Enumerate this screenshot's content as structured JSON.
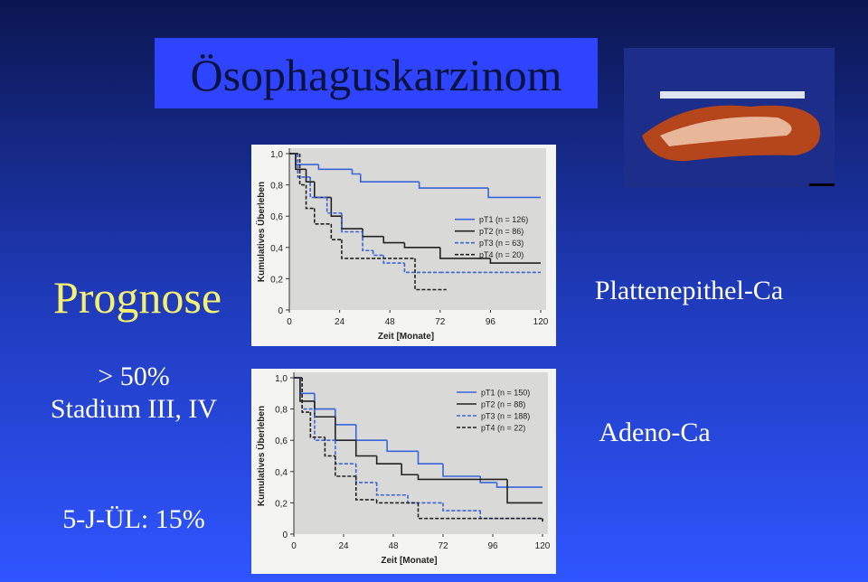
{
  "slide": {
    "title": "Ösophaguskarzinom",
    "heading": "Prognose",
    "line1": "> 50%",
    "line2": "Stadium III, IV",
    "line3": "5-J-ÜL: 15%",
    "label_top": "Plattenepithel-Ca",
    "label_bottom": "Adeno-Ca"
  },
  "chart_data": [
    {
      "type": "step",
      "xlabel": "Zeit [Monate]",
      "ylabel": "Kumulatives Überleben",
      "xlim": [
        0,
        120
      ],
      "ylim": [
        0,
        1
      ],
      "xticks": [
        0,
        24,
        48,
        72,
        96,
        120
      ],
      "yticks": [
        0,
        {
          "value": 0.2,
          "label": "0,2"
        },
        {
          "value": 0.4,
          "label": "0,4"
        },
        {
          "value": 0.6,
          "label": "0,6"
        },
        {
          "value": 0.8,
          "label": "0,8"
        },
        {
          "value": 1,
          "label": "1,0"
        }
      ],
      "legend": "center right",
      "series": [
        {
          "name": "pT1 (n = 126)",
          "color": "#3a64d8",
          "linestyle": "solid",
          "x": [
            0,
            3,
            14,
            30,
            34,
            62,
            95,
            120
          ],
          "values": [
            1.0,
            0.93,
            0.9,
            0.87,
            0.82,
            0.78,
            0.72,
            0.72
          ]
        },
        {
          "name": "pT2 (n = 86)",
          "color": "#222222",
          "linestyle": "solid",
          "x": [
            0,
            3,
            8,
            12,
            20,
            25,
            35,
            45,
            55,
            72,
            96,
            120
          ],
          "values": [
            1.0,
            0.9,
            0.82,
            0.72,
            0.6,
            0.52,
            0.47,
            0.43,
            0.4,
            0.33,
            0.3,
            0.3
          ]
        },
        {
          "name": "pT3 (n = 63)",
          "color": "#3a64d8",
          "linestyle": "dashed",
          "x": [
            0,
            4,
            10,
            18,
            25,
            35,
            40,
            45,
            55,
            72,
            120
          ],
          "values": [
            1.0,
            0.85,
            0.72,
            0.62,
            0.5,
            0.38,
            0.35,
            0.3,
            0.24,
            0.24,
            0.24
          ]
        },
        {
          "name": "pT4 (n = 20)",
          "color": "#222222",
          "linestyle": "dashed",
          "x": [
            0,
            5,
            8,
            12,
            20,
            25,
            55,
            60,
            75
          ],
          "values": [
            1.0,
            0.8,
            0.65,
            0.55,
            0.45,
            0.33,
            0.33,
            0.13,
            0.13
          ]
        }
      ]
    },
    {
      "type": "step",
      "xlabel": "Zeit [Monate]",
      "ylabel": "Kumulatives Überleben",
      "xlim": [
        0,
        120
      ],
      "ylim": [
        0,
        1
      ],
      "xticks": [
        0,
        24,
        48,
        72,
        96,
        120
      ],
      "yticks": [
        0,
        {
          "value": 0.2,
          "label": "0,2"
        },
        {
          "value": 0.4,
          "label": "0,4"
        },
        {
          "value": 0.6,
          "label": "0,6"
        },
        {
          "value": 0.8,
          "label": "0,8"
        },
        {
          "value": 1,
          "label": "1,0"
        }
      ],
      "legend": "upper right",
      "series": [
        {
          "name": "pT1 (n = 150)",
          "color": "#3a64d8",
          "linestyle": "solid",
          "x": [
            0,
            3,
            10,
            20,
            30,
            45,
            60,
            72,
            90,
            98,
            120
          ],
          "values": [
            1.0,
            0.9,
            0.8,
            0.7,
            0.6,
            0.53,
            0.45,
            0.37,
            0.33,
            0.3,
            0.3
          ]
        },
        {
          "name": "pT2 (n = 88)",
          "color": "#222222",
          "linestyle": "solid",
          "x": [
            0,
            3,
            10,
            20,
            30,
            40,
            52,
            60,
            96,
            103,
            120
          ],
          "values": [
            1.0,
            0.85,
            0.75,
            0.6,
            0.5,
            0.45,
            0.38,
            0.35,
            0.35,
            0.2,
            0.2
          ]
        },
        {
          "name": "pT3 (n = 188)",
          "color": "#3a64d8",
          "linestyle": "dashed",
          "x": [
            0,
            4,
            10,
            20,
            30,
            40,
            55,
            72,
            90,
            120
          ],
          "values": [
            1.0,
            0.8,
            0.6,
            0.45,
            0.33,
            0.25,
            0.2,
            0.15,
            0.1,
            0.08
          ]
        },
        {
          "name": "pT4 (n = 22)",
          "color": "#222222",
          "linestyle": "dashed",
          "x": [
            0,
            4,
            8,
            15,
            20,
            30,
            40,
            60,
            120
          ],
          "values": [
            1.0,
            0.78,
            0.62,
            0.5,
            0.37,
            0.22,
            0.2,
            0.1,
            0.08
          ]
        }
      ]
    }
  ]
}
